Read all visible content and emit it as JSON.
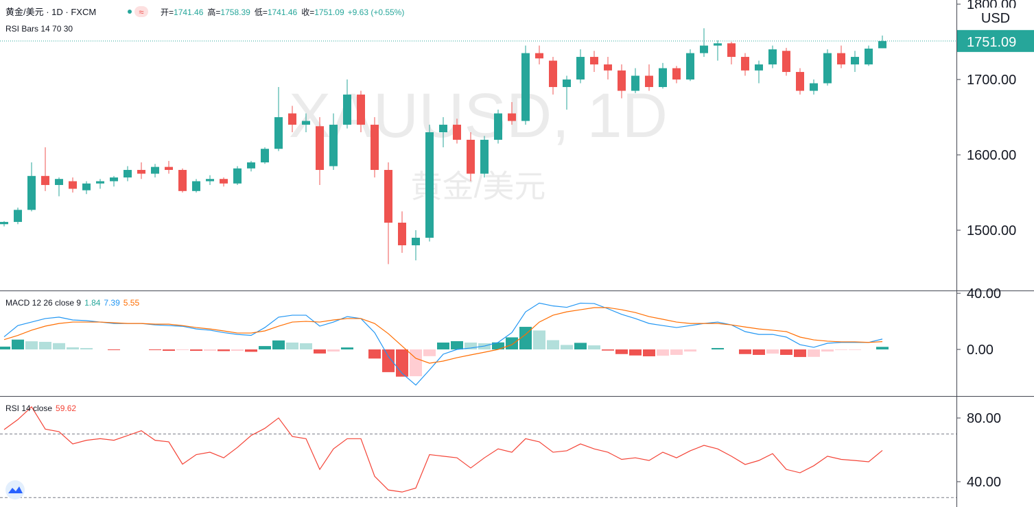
{
  "header": {
    "symbol": "黄金/美元 · 1D · FXCM",
    "ohlc": [
      {
        "label": "开=",
        "value": "1741.46"
      },
      {
        "label": "高=",
        "value": "1758.39"
      },
      {
        "label": "低=",
        "value": "1741.46"
      },
      {
        "label": "收=",
        "value": "1751.09"
      }
    ],
    "change": "+9.63 (+0.55%)",
    "indicator": "RSI Bars 14 70 30"
  },
  "watermark": {
    "symbol": "XAUUSD, 1D",
    "name": "黄金/美元"
  },
  "currency": "USD",
  "chart_data": [
    {
      "type": "candlestick",
      "up_color": "#26a69a",
      "down_color": "#ef5350",
      "open": [
        1508,
        1511,
        1527,
        1572,
        1560,
        1565,
        1553,
        1562,
        1565,
        1570,
        1580,
        1575,
        1584,
        1580,
        1552,
        1565,
        1568,
        1562,
        1582,
        1590,
        1608,
        1655,
        1640,
        1638,
        1585,
        1640,
        1680,
        1640,
        1580,
        1510,
        1480,
        1490,
        1630,
        1640,
        1620,
        1575,
        1620,
        1655,
        1645,
        1735,
        1725,
        1690,
        1700,
        1730,
        1720,
        1712,
        1685,
        1705,
        1690,
        1715,
        1700,
        1735,
        1745,
        1748,
        1730,
        1712,
        1720,
        1738,
        1710,
        1685,
        1695,
        1735,
        1720,
        1720,
        1741.46
      ],
      "high": [
        1512,
        1530,
        1590,
        1610,
        1570,
        1570,
        1565,
        1568,
        1572,
        1585,
        1590,
        1588,
        1592,
        1582,
        1568,
        1573,
        1570,
        1585,
        1592,
        1610,
        1690,
        1665,
        1655,
        1650,
        1655,
        1700,
        1685,
        1650,
        1590,
        1525,
        1500,
        1640,
        1650,
        1648,
        1630,
        1625,
        1660,
        1670,
        1745,
        1745,
        1730,
        1705,
        1740,
        1738,
        1730,
        1720,
        1715,
        1720,
        1722,
        1718,
        1740,
        1768,
        1752,
        1750,
        1735,
        1725,
        1745,
        1742,
        1715,
        1700,
        1740,
        1745,
        1738,
        1745,
        1758.39
      ],
      "low": [
        1505,
        1508,
        1525,
        1552,
        1545,
        1550,
        1548,
        1555,
        1558,
        1565,
        1568,
        1570,
        1575,
        1550,
        1550,
        1560,
        1558,
        1560,
        1578,
        1588,
        1605,
        1630,
        1630,
        1560,
        1580,
        1635,
        1630,
        1570,
        1455,
        1470,
        1460,
        1485,
        1610,
        1615,
        1565,
        1570,
        1615,
        1640,
        1640,
        1720,
        1680,
        1660,
        1695,
        1710,
        1700,
        1675,
        1682,
        1685,
        1688,
        1695,
        1698,
        1730,
        1725,
        1720,
        1705,
        1695,
        1715,
        1705,
        1680,
        1680,
        1692,
        1715,
        1710,
        1718,
        1741.46
      ],
      "close": [
        1511,
        1527,
        1572,
        1560,
        1568,
        1555,
        1562,
        1565,
        1570,
        1580,
        1575,
        1584,
        1580,
        1552,
        1565,
        1568,
        1562,
        1582,
        1590,
        1608,
        1650,
        1640,
        1645,
        1580,
        1640,
        1680,
        1640,
        1580,
        1510,
        1480,
        1490,
        1630,
        1640,
        1620,
        1575,
        1620,
        1655,
        1645,
        1735,
        1728,
        1690,
        1700,
        1730,
        1720,
        1712,
        1685,
        1705,
        1690,
        1715,
        1700,
        1735,
        1745,
        1748,
        1730,
        1712,
        1720,
        1740,
        1710,
        1685,
        1695,
        1735,
        1720,
        1730,
        1741,
        1751.09
      ],
      "ylim": [
        1420,
        1805.5
      ],
      "yticks": [
        {
          "value": 1500,
          "label": "1500.00"
        },
        {
          "value": 1600,
          "label": "1600.00"
        },
        {
          "value": 1700,
          "label": "1700.00"
        },
        {
          "value": 1800,
          "label": "1800.00"
        }
      ],
      "last_price": {
        "value": 1751.09,
        "label": "1751.09"
      }
    },
    {
      "type": "macd",
      "title": "MACD 12 26 close 9",
      "histogram": {
        "values": [
          2,
          7,
          5.8,
          5.4,
          4.5,
          1.5,
          1,
          0,
          -0.5,
          0,
          0,
          -0.5,
          -1,
          -0.5,
          -1,
          -0.9,
          -1.2,
          -1,
          -1.7,
          2.4,
          6.4,
          4.9,
          4.4,
          -2.9,
          -1.5,
          1.4,
          0,
          -6.5,
          -16.2,
          -19.4,
          -19.1,
          -4.8,
          4.9,
          5.9,
          4.9,
          4.4,
          5,
          8.6,
          16.1,
          13.5,
          6.6,
          3.2,
          4.7,
          2.9,
          -0.8,
          -3.3,
          -4.3,
          -4.9,
          -4.5,
          -3.9,
          -1.5,
          0,
          1,
          0,
          -3.3,
          -3.9,
          -3,
          -3.9,
          -5.4,
          -5.3,
          -1.5,
          -0.4,
          -0.4,
          0,
          1.84
        ],
        "colors": [
          "#26a69a",
          "#b2dfdb",
          "#ffcdd2",
          "#ef5350"
        ],
        "last_label": "1.84",
        "label_color": "#26a69a"
      },
      "series": [
        {
          "color": "#2196f3",
          "last_label": "7.39",
          "values": [
            9,
            17,
            19.5,
            22,
            23,
            21,
            20.5,
            19.5,
            18.5,
            18.5,
            18.5,
            17.5,
            17,
            16.5,
            14.6,
            13.7,
            12,
            10.7,
            10,
            15.6,
            23,
            24.4,
            24.4,
            16.6,
            19.5,
            23.4,
            22,
            12,
            -5,
            -17,
            -25.4,
            -14.6,
            -3.4,
            0,
            1,
            2.4,
            5,
            12,
            26.8,
            33,
            31,
            30,
            33,
            32.7,
            29,
            25,
            22,
            18.5,
            17,
            15.6,
            17,
            18.5,
            19.5,
            17.5,
            12.7,
            10.7,
            10.7,
            8.8,
            3.4,
            1.5,
            4.4,
            5,
            5,
            5,
            7.39
          ]
        },
        {
          "color": "#ff6d00",
          "last_label": "5.55",
          "values": [
            7,
            10,
            13.7,
            16.6,
            18.5,
            19.5,
            19.5,
            19.5,
            19,
            18.5,
            18.5,
            18,
            18,
            17,
            15.6,
            14.6,
            13.2,
            11.7,
            11.7,
            13.2,
            16.6,
            19.5,
            20,
            19.5,
            21,
            22,
            22,
            18.5,
            11.2,
            2.4,
            -6.3,
            -9.8,
            -8.3,
            -5.9,
            -3.9,
            -2,
            0,
            3.4,
            10.7,
            19.5,
            24.4,
            26.8,
            28.3,
            29.8,
            29.8,
            28.3,
            26.3,
            23.4,
            21.5,
            19.5,
            18.5,
            18.5,
            18.5,
            17.5,
            16,
            14.6,
            13.7,
            12.7,
            8.8,
            6.8,
            5.9,
            5.4,
            5.4,
            5,
            5.55
          ]
        }
      ],
      "ylim": [
        -33.2,
        42
      ],
      "yticks": [
        {
          "value": 0,
          "label": "0.00"
        },
        {
          "value": 40,
          "label": "40.00"
        }
      ]
    },
    {
      "type": "rsi",
      "title": "RSI 14 close",
      "series": [
        {
          "color": "#f44336",
          "last_label": "59.62",
          "values": [
            72.7,
            79,
            87,
            73,
            71.4,
            63.7,
            66,
            67,
            66,
            69,
            72,
            66,
            65,
            51,
            57,
            58.5,
            55,
            61.5,
            69,
            73.5,
            80,
            68.4,
            67,
            47.7,
            60.6,
            67,
            67,
            43.4,
            34.8,
            33.5,
            36,
            57,
            56,
            55,
            48.6,
            55,
            60.6,
            58.5,
            67,
            65,
            58.5,
            59.4,
            63.7,
            60.6,
            58.5,
            54,
            55,
            53.3,
            58.5,
            55,
            59.4,
            62.8,
            60.6,
            56,
            50.8,
            53.3,
            57.6,
            47.7,
            45.6,
            50,
            56,
            54,
            53.3,
            52.5,
            59.62
          ]
        }
      ],
      "levels": [
        70,
        30
      ],
      "ylim": [
        24.1,
        93.8
      ],
      "yticks": [
        {
          "value": 40,
          "label": "40.00"
        },
        {
          "value": 80,
          "label": "80.00"
        }
      ]
    }
  ]
}
